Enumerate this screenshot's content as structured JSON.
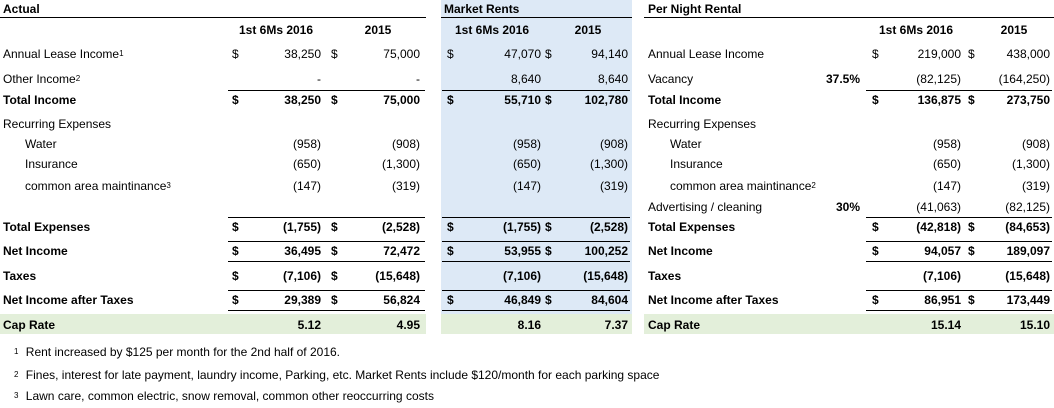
{
  "actual": {
    "heading": "Actual",
    "col_a": "1st 6Ms 2016",
    "col_b": "2015",
    "rows": [
      {
        "label": "Annual Lease Income",
        "sup": "1",
        "d1": "$",
        "a": "38,250",
        "d2": "$",
        "b": "75,000"
      },
      {
        "label": "Other Income",
        "sup": "2",
        "d1": "",
        "a": "-",
        "d2": "",
        "b": "-"
      },
      {
        "label": "Total Income",
        "sup": "",
        "d1": "$",
        "a": "38,250",
        "d2": "$",
        "b": "75,000"
      },
      {
        "label": "Recurring Expenses",
        "sup": "",
        "d1": "",
        "a": "",
        "d2": "",
        "b": ""
      },
      {
        "label": "Water",
        "sup": "",
        "d1": "",
        "a": "(958)",
        "d2": "",
        "b": "(908)"
      },
      {
        "label": "Insurance",
        "sup": "",
        "d1": "",
        "a": "(650)",
        "d2": "",
        "b": "(1,300)"
      },
      {
        "label": "common area maintinance",
        "sup": "3",
        "d1": "",
        "a": "(147)",
        "d2": "",
        "b": "(319)"
      },
      {
        "label": "",
        "sup": "",
        "d1": "",
        "a": "",
        "d2": "",
        "b": ""
      },
      {
        "label": "Total Expenses",
        "sup": "",
        "d1": "$",
        "a": "(1,755)",
        "d2": "$",
        "b": "(2,528)"
      },
      {
        "label": "Net Income",
        "sup": "",
        "d1": "$",
        "a": "36,495",
        "d2": "$",
        "b": "72,472"
      },
      {
        "label": "Taxes",
        "sup": "",
        "d1": "$",
        "a": "(7,106)",
        "d2": "$",
        "b": "(15,648)"
      },
      {
        "label": "Net Income after Taxes",
        "sup": "",
        "d1": "$",
        "a": "29,389",
        "d2": "$",
        "b": "56,824"
      },
      {
        "label": "Cap Rate",
        "sup": "",
        "d1": "",
        "a": "5.12",
        "d2": "",
        "b": "4.95"
      }
    ]
  },
  "market": {
    "heading": "Market Rents",
    "col_a": "1st 6Ms 2016",
    "col_b": "2015",
    "rows": [
      {
        "d1": "$",
        "a": "47,070",
        "d2": "$",
        "b": "94,140"
      },
      {
        "d1": "",
        "a": "8,640",
        "d2": "",
        "b": "8,640"
      },
      {
        "d1": "$",
        "a": "55,710",
        "d2": "$",
        "b": "102,780"
      },
      {
        "d1": "",
        "a": "",
        "d2": "",
        "b": ""
      },
      {
        "d1": "",
        "a": "(958)",
        "d2": "",
        "b": "(908)"
      },
      {
        "d1": "",
        "a": "(650)",
        "d2": "",
        "b": "(1,300)"
      },
      {
        "d1": "",
        "a": "(147)",
        "d2": "",
        "b": "(319)"
      },
      {
        "d1": "",
        "a": "",
        "d2": "",
        "b": ""
      },
      {
        "d1": "$",
        "a": "(1,755)",
        "d2": "$",
        "b": "(2,528)"
      },
      {
        "d1": "$",
        "a": "53,955",
        "d2": "$",
        "b": "100,252"
      },
      {
        "d1": "",
        "a": "(7,106)",
        "d2": "",
        "b": "(15,648)"
      },
      {
        "d1": "$",
        "a": "46,849",
        "d2": "$",
        "b": "84,604"
      },
      {
        "d1": "",
        "a": "8.16",
        "d2": "",
        "b": "7.37"
      }
    ]
  },
  "per_night": {
    "heading": "Per Night Rental",
    "col_a": "1st 6Ms 2016",
    "col_b": "2015",
    "rows": [
      {
        "label": "Annual Lease Income",
        "sup": "",
        "pct": "",
        "d1": "$",
        "a": "219,000",
        "d2": "$",
        "b": "438,000"
      },
      {
        "label": "Vacancy",
        "sup": "",
        "pct": "37.5%",
        "d1": "",
        "a": "(82,125)",
        "d2": "",
        "b": "(164,250)"
      },
      {
        "label": "Total Income",
        "sup": "",
        "pct": "",
        "d1": "$",
        "a": "136,875",
        "d2": "$",
        "b": "273,750"
      },
      {
        "label": "Recurring Expenses",
        "sup": "",
        "pct": "",
        "d1": "",
        "a": "",
        "d2": "",
        "b": ""
      },
      {
        "label": "Water",
        "sup": "",
        "pct": "",
        "d1": "",
        "a": "(958)",
        "d2": "",
        "b": "(908)"
      },
      {
        "label": "Insurance",
        "sup": "",
        "pct": "",
        "d1": "",
        "a": "(650)",
        "d2": "",
        "b": "(1,300)"
      },
      {
        "label": "common area maintinance",
        "sup": "2",
        "pct": "",
        "d1": "",
        "a": "(147)",
        "d2": "",
        "b": "(319)"
      },
      {
        "label": "Advertising / cleaning",
        "sup": "",
        "pct": "30%",
        "d1": "",
        "a": "(41,063)",
        "d2": "",
        "b": "(82,125)"
      },
      {
        "label": "Total Expenses",
        "sup": "",
        "pct": "",
        "d1": "$",
        "a": "(42,818)",
        "d2": "$",
        "b": "(84,653)"
      },
      {
        "label": "Net Income",
        "sup": "",
        "pct": "",
        "d1": "$",
        "a": "94,057",
        "d2": "$",
        "b": "189,097"
      },
      {
        "label": "Taxes",
        "sup": "",
        "pct": "",
        "d1": "",
        "a": "(7,106)",
        "d2": "",
        "b": "(15,648)"
      },
      {
        "label": "Net Income after Taxes",
        "sup": "",
        "pct": "",
        "d1": "$",
        "a": "86,951",
        "d2": "$",
        "b": "173,449"
      },
      {
        "label": "Cap Rate",
        "sup": "",
        "pct": "",
        "d1": "",
        "a": "15.14",
        "d2": "",
        "b": "15.10"
      }
    ]
  },
  "footnotes": [
    {
      "num": "1",
      "text": "Rent increased by $125 per month for the 2nd half of 2016."
    },
    {
      "num": "2",
      "text": "Fines, interest for late payment, laundry income, Parking, etc. Market Rents include $120/month for each parking space"
    },
    {
      "num": "3",
      "text": "Lawn care, common electric, snow removal, common other reoccurring costs"
    }
  ],
  "colors": {
    "market_bg": "#dde9f6",
    "cap_rate_bg": "#e3efda"
  }
}
